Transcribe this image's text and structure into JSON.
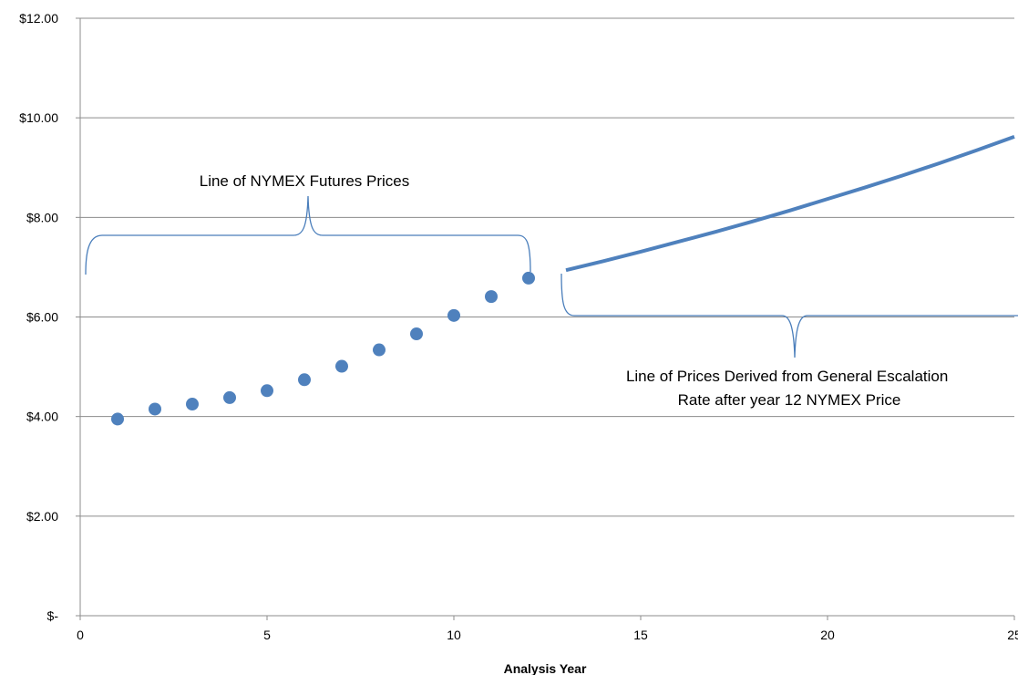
{
  "chart_data": {
    "type": "scatter",
    "xlabel": "Analysis Year",
    "ylabel": "",
    "xlim": [
      0,
      25
    ],
    "ylim": [
      0,
      12
    ],
    "x_ticks": [
      0,
      5,
      10,
      15,
      20,
      25
    ],
    "x_tick_labels": [
      "0",
      "5",
      "10",
      "15",
      "20",
      "25"
    ],
    "y_ticks": [
      0,
      2,
      4,
      6,
      8,
      10,
      12
    ],
    "y_tick_labels": [
      "$-",
      "$2.00",
      "$4.00",
      "$6.00",
      "$8.00",
      "$10.00",
      "$12.00"
    ],
    "grid": "horizontal",
    "accent_color": "#4F81BD",
    "brace_color": "#4A7EBB",
    "series": [
      {
        "kind": "points",
        "x": [
          1,
          2,
          3,
          4,
          5,
          6,
          7,
          8,
          9,
          10,
          11,
          12
        ],
        "y": [
          3.95,
          4.15,
          4.25,
          4.38,
          4.52,
          4.74,
          5.01,
          5.34,
          5.66,
          6.03,
          6.41,
          6.78
        ]
      },
      {
        "kind": "line",
        "x": [
          13,
          14,
          15,
          16,
          17,
          18,
          19,
          20,
          21,
          22,
          23,
          24,
          25
        ],
        "y": [
          6.94,
          7.12,
          7.31,
          7.51,
          7.71,
          7.92,
          8.14,
          8.37,
          8.6,
          8.84,
          9.09,
          9.35,
          9.62
        ]
      }
    ],
    "annotations": [
      {
        "lines": [
          "Line of NYMEX Futures Prices"
        ]
      },
      {
        "lines": [
          "Line of Prices Derived from General Escalation",
          "Rate after year 12 NYMEX Price"
        ]
      }
    ]
  }
}
